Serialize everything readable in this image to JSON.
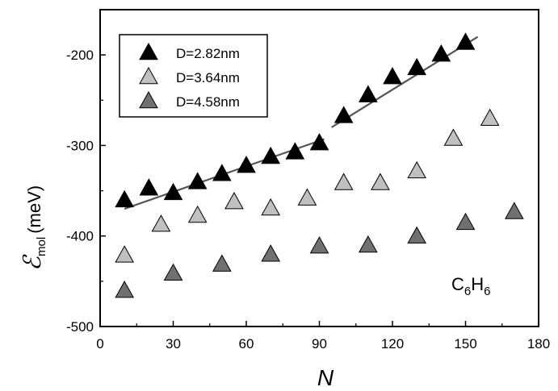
{
  "chart_data": {
    "type": "scatter",
    "xlabel": "N",
    "ylabel": {
      "symbol": "ℰ",
      "subscript": "mol",
      "unit": "(meV)"
    },
    "xlim": [
      0,
      180
    ],
    "ylim": [
      -500,
      -150
    ],
    "xticks": [
      0,
      30,
      60,
      90,
      120,
      150,
      180
    ],
    "yticks": [
      -500,
      -400,
      -300,
      -200
    ],
    "grid": false,
    "legend_position": "top-left",
    "annotation": {
      "parts": [
        "C",
        "6",
        "H",
        "6"
      ]
    },
    "series": [
      {
        "name": "D=2.82nm",
        "color": "#000000",
        "x": [
          10,
          20,
          30,
          40,
          50,
          60,
          70,
          80,
          90,
          100,
          110,
          120,
          130,
          140,
          150
        ],
        "y": [
          -360,
          -347,
          -352,
          -340,
          -331,
          -322,
          -312,
          -307,
          -297,
          -267,
          -244,
          -224,
          -214,
          -199,
          -186
        ]
      },
      {
        "name": "D=3.64nm",
        "color": "#c0c0c0",
        "x": [
          10,
          25,
          40,
          55,
          70,
          85,
          100,
          115,
          130,
          145,
          160
        ],
        "y": [
          -421,
          -387,
          -377,
          -362,
          -369,
          -358,
          -341,
          -341,
          -328,
          -292,
          -270
        ]
      },
      {
        "name": "D=4.58nm",
        "color": "#707070",
        "x": [
          10,
          30,
          50,
          70,
          90,
          110,
          130,
          150,
          170
        ],
        "y": [
          -460,
          -441,
          -431,
          -420,
          -411,
          -410,
          -400,
          -385,
          -373
        ]
      }
    ],
    "fit_lines": [
      {
        "color": "#555555",
        "x": [
          10,
          92
        ],
        "y": [
          -370,
          -293
        ]
      },
      {
        "color": "#555555",
        "x": [
          95,
          155
        ],
        "y": [
          -280,
          -180
        ]
      }
    ]
  }
}
